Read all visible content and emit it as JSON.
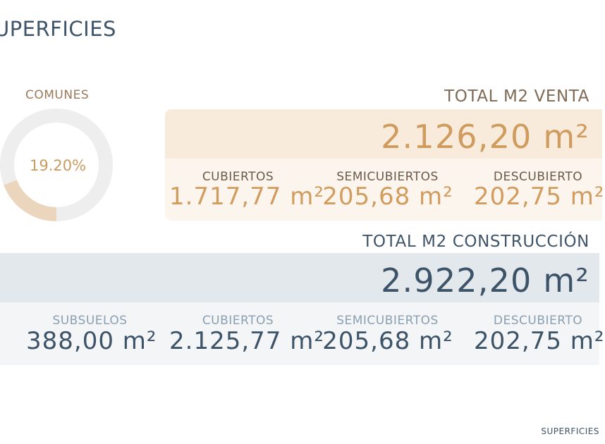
{
  "title": "UPERFICIES",
  "comunes": {
    "label": "COMUNES",
    "value_text": "19.20%",
    "fraction": 0.192,
    "colors": {
      "track": "#eeeeee",
      "fill": "#ebd6bd",
      "fill_edge": "#f4e8da"
    }
  },
  "venta": {
    "title": "TOTAL M2 VENTA",
    "total": "2.126,20 m²",
    "columns": [
      {
        "label": "CUBIERTOS",
        "value": "1.717,77 m²"
      },
      {
        "label": "SEMICUBIERTOS",
        "value": "205,68 m²"
      },
      {
        "label": "DESCUBIERTO",
        "value": "202,75 m²"
      }
    ],
    "colors": {
      "band": "#f8ebdc",
      "band_light": "#fcf5ee",
      "accent": "#cf9c5e"
    }
  },
  "construccion": {
    "title": "TOTAL M2 CONSTRUCCIÓN",
    "total": "2.922,20 m²",
    "columns": [
      {
        "label": "SUBSUELOS",
        "value": "388,00 m²"
      },
      {
        "label": "CUBIERTOS",
        "value": "2.125,77 m²"
      },
      {
        "label": "SEMICUBIERTOS",
        "value": "205,68 m²"
      },
      {
        "label": "DESCUBIERTO",
        "value": "202,75 m²"
      }
    ],
    "colors": {
      "band": "#e3e8ed",
      "band_light": "#f3f5f7",
      "accent": "#3c5368"
    }
  },
  "footer": "SUPERFICIES"
}
